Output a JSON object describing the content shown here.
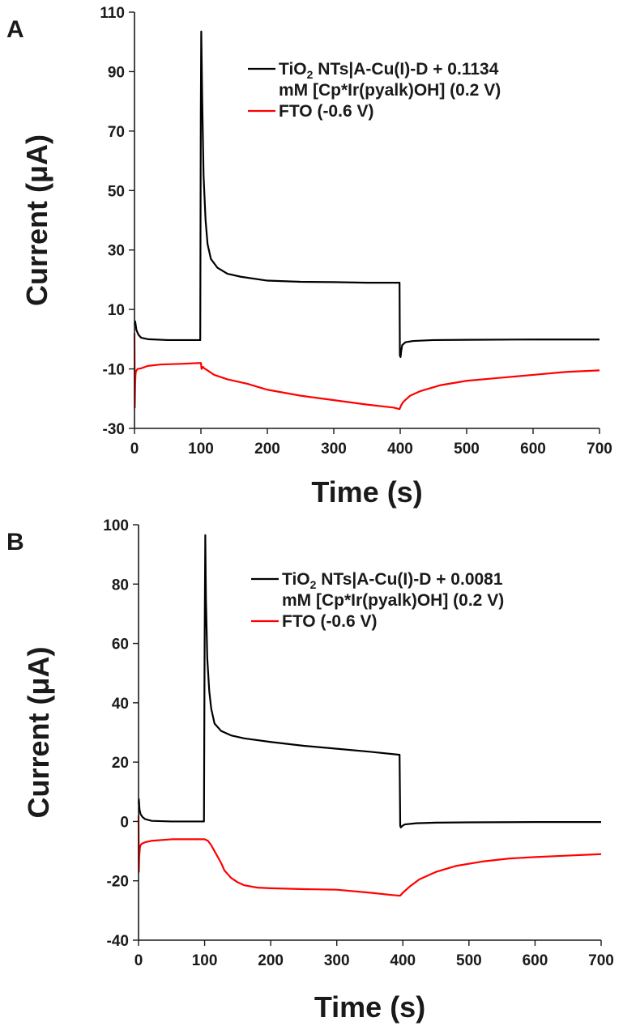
{
  "chart_data": [
    {
      "panel": "A",
      "type": "line",
      "xlabel": "Time (s)",
      "ylabel": "Current (μA)",
      "xlim": [
        0,
        700
      ],
      "ylim": [
        -30,
        110
      ],
      "xticks": [
        0,
        100,
        200,
        300,
        400,
        500,
        600,
        700
      ],
      "yticks": [
        -30,
        -10,
        10,
        30,
        50,
        70,
        90,
        110
      ],
      "legend_position": "top-right",
      "series": [
        {
          "legend_lines": [
            "TiO2 NTs|A-Cu(I)-D + 0.1134",
            "mM [Cp*Ir(pyalk)OH] (0.2 V)"
          ],
          "color": "#000000",
          "x": [
            0,
            1,
            3,
            6,
            10,
            20,
            50,
            99,
            99.8,
            100.5,
            102,
            104,
            107,
            110,
            115,
            125,
            140,
            160,
            200,
            250,
            300,
            350,
            399,
            399.5,
            400.5,
            401.5,
            403,
            408,
            420,
            450,
            500,
            600,
            700
          ],
          "y": [
            5,
            6,
            3,
            1.5,
            0.5,
            0,
            -0.3,
            -0.3,
            75,
            103.5,
            80,
            55,
            40,
            32,
            27,
            24,
            22,
            21,
            19.7,
            19.3,
            19.2,
            19,
            19,
            -5.5,
            -6,
            -4,
            -2,
            -1,
            -0.6,
            -0.3,
            -0.2,
            -0.1,
            -0.1
          ]
        },
        {
          "legend_lines": [
            "FTO (-0.6 V)"
          ],
          "color": "#ff0000",
          "x": [
            0,
            0.5,
            1,
            1.5,
            2,
            3,
            5,
            10,
            20,
            40,
            70,
            99,
            100,
            101,
            103,
            105,
            110,
            120,
            140,
            170,
            200,
            250,
            300,
            350,
            390,
            399,
            400,
            402,
            405,
            415,
            430,
            460,
            500,
            550,
            600,
            650,
            700
          ],
          "y": [
            2,
            -23,
            -15,
            -12,
            -11,
            -10.5,
            -10,
            -9.8,
            -9,
            -8.5,
            -8.3,
            -8,
            -8,
            -10,
            -9.3,
            -9.8,
            -10.5,
            -12,
            -13.5,
            -15,
            -17,
            -19,
            -20.5,
            -22,
            -23,
            -23.5,
            -23,
            -22,
            -21,
            -19,
            -17.5,
            -15.5,
            -14,
            -13,
            -12,
            -11,
            -10.5
          ]
        }
      ]
    },
    {
      "panel": "B",
      "type": "line",
      "xlabel": "Time (s)",
      "ylabel": "Current (μA)",
      "xlim": [
        0,
        700
      ],
      "ylim": [
        -40,
        100
      ],
      "xticks": [
        0,
        100,
        200,
        300,
        400,
        500,
        600,
        700
      ],
      "yticks": [
        -40,
        -20,
        0,
        20,
        40,
        60,
        80,
        100
      ],
      "legend_position": "top-right",
      "series": [
        {
          "legend_lines": [
            "TiO2 NTs|A-Cu(I)-D + 0.0081",
            "mM [Cp*Ir(pyalk)OH] (0.2 V)"
          ],
          "color": "#000000",
          "x": [
            0,
            0.5,
            1.5,
            3,
            6,
            10,
            20,
            50,
            99,
            100,
            101,
            102,
            104,
            107,
            110,
            115,
            125,
            140,
            160,
            200,
            250,
            300,
            350,
            394,
            395,
            396,
            397,
            399,
            403,
            420,
            450,
            500,
            600,
            700
          ],
          "y": [
            6,
            7.5,
            4,
            2.5,
            1.5,
            0.8,
            0.2,
            0,
            0,
            60,
            96.5,
            75,
            55,
            44,
            38,
            33,
            30.5,
            29,
            28,
            26.8,
            25.5,
            24.5,
            23.5,
            22.5,
            22.5,
            -1.5,
            -2,
            -1.5,
            -1,
            -0.6,
            -0.4,
            -0.3,
            -0.2,
            -0.2
          ]
        },
        {
          "legend_lines": [
            "FTO (-0.6 V)"
          ],
          "color": "#ff0000",
          "x": [
            0,
            0.5,
            1,
            2,
            3,
            5,
            10,
            20,
            50,
            99,
            100,
            105,
            110,
            115,
            120,
            125,
            130,
            140,
            150,
            160,
            180,
            200,
            250,
            300,
            350,
            380,
            394,
            396,
            400,
            410,
            425,
            450,
            480,
            520,
            560,
            600,
            650,
            700
          ],
          "y": [
            2,
            -17,
            -12,
            -9,
            -8,
            -7.5,
            -7,
            -6.5,
            -6,
            -6,
            -6,
            -6.5,
            -8,
            -10,
            -12,
            -14,
            -16.5,
            -19,
            -20.5,
            -21.5,
            -22.3,
            -22.5,
            -22.8,
            -23,
            -24,
            -24.7,
            -25,
            -25,
            -24,
            -22,
            -19.5,
            -17,
            -15,
            -13.5,
            -12.5,
            -12,
            -11.5,
            -11
          ]
        }
      ]
    }
  ]
}
